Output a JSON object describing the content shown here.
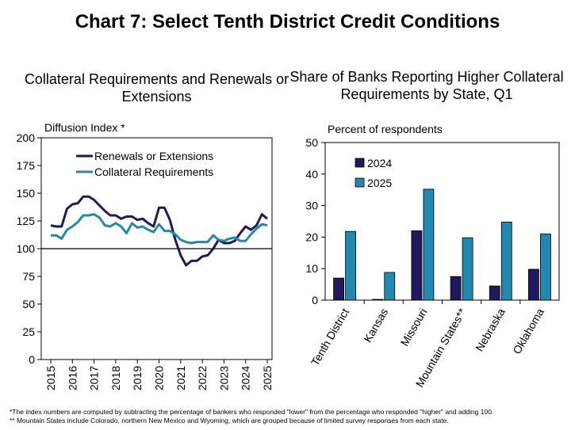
{
  "title": "Chart 7: Select Tenth District Credit Conditions",
  "footnotes": [
    "*The index numbers are computed by subtracting the percentage of bankers who responded \"lower\" from the percentage who responded \"higher\" and adding 100.",
    "** Mountain States include Colorado, northern New Mexico and Wyoming, which are grouped because of limited survey responses from each state."
  ],
  "chart_data": [
    {
      "type": "line",
      "title": "Collateral Requirements and Renewals or Extensions",
      "ylabel": "Diffusion Index *",
      "xlabel": "",
      "ylim": [
        0,
        200
      ],
      "yticks": [
        0,
        25,
        50,
        75,
        100,
        125,
        150,
        175,
        200
      ],
      "xticks": [
        "2015",
        "2016",
        "2017",
        "2018",
        "2019",
        "2020",
        "2021",
        "2022",
        "2023",
        "2024",
        "2025"
      ],
      "grid": false,
      "reference_line": 100,
      "legend": "top-left",
      "colors": [
        "#1f1a5e",
        "#2288b0"
      ],
      "x": [
        "2015 Q1",
        "2015 Q2",
        "2015 Q3",
        "2015 Q4",
        "2016 Q1",
        "2016 Q2",
        "2016 Q3",
        "2016 Q4",
        "2017 Q1",
        "2017 Q2",
        "2017 Q3",
        "2017 Q4",
        "2018 Q1",
        "2018 Q2",
        "2018 Q3",
        "2018 Q4",
        "2019 Q1",
        "2019 Q2",
        "2019 Q3",
        "2019 Q4",
        "2020 Q1",
        "2020 Q2",
        "2020 Q3",
        "2020 Q4",
        "2021 Q1",
        "2021 Q2",
        "2021 Q3",
        "2021 Q4",
        "2022 Q1",
        "2022 Q2",
        "2022 Q3",
        "2022 Q4",
        "2023 Q1",
        "2023 Q2",
        "2023 Q3",
        "2023 Q4",
        "2024 Q1",
        "2024 Q2",
        "2024 Q3",
        "2024 Q4",
        "2025 Q1"
      ],
      "series": [
        {
          "name": "Renewals or Extensions",
          "values": [
            121,
            120,
            120,
            136,
            140,
            141,
            147,
            147,
            144,
            139,
            134,
            130,
            130,
            127,
            129,
            129,
            126,
            127,
            123,
            120,
            137,
            137,
            126,
            108,
            94,
            85,
            89,
            89,
            93,
            94,
            100,
            108,
            105,
            105,
            107,
            114,
            120,
            117,
            121,
            131,
            127
          ]
        },
        {
          "name": "Collateral Requirements",
          "values": [
            112,
            112,
            109,
            117,
            120,
            124,
            130,
            130,
            131,
            128,
            121,
            120,
            123,
            120,
            114,
            123,
            119,
            120,
            117,
            115,
            122,
            116,
            116,
            113,
            108,
            106,
            105,
            106,
            106,
            106,
            112,
            108,
            107,
            109,
            110,
            107,
            107,
            113,
            118,
            122,
            121
          ]
        }
      ]
    },
    {
      "type": "bar",
      "title": "Share of Banks Reporting Higher Collateral Requirements by State, Q1",
      "ylabel": "Percent of respondents",
      "xlabel": "",
      "ylim": [
        0,
        50
      ],
      "yticks": [
        0,
        10,
        20,
        30,
        40,
        50
      ],
      "grid": false,
      "legend": "top-left",
      "colors": [
        "#1f1a5e",
        "#2288b0"
      ],
      "categories": [
        "Tenth District",
        "Kansas",
        "Missouri",
        "Mountain States**",
        "Nebraska",
        "Oklahoma"
      ],
      "series": [
        {
          "name": "2024",
          "values": [
            7,
            0,
            22,
            7.5,
            4.5,
            9.8
          ]
        },
        {
          "name": "2025",
          "values": [
            21.8,
            8.8,
            35.2,
            19.8,
            24.8,
            21
          ]
        }
      ]
    }
  ]
}
